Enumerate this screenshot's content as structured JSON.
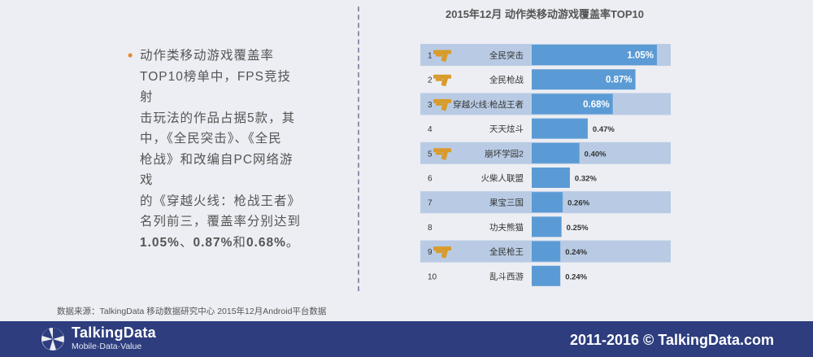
{
  "summary": {
    "line1": "动作类移动游戏覆盖率",
    "line2": "TOP10榜单中，FPS竞技射",
    "line3": "击玩法的作品占据5款，其",
    "line4": "中，《全民突击》、《全民",
    "line5": "枪战》和改编自PC网络游戏",
    "line6": "的《穿越火线：枪战王者》",
    "line7": "名列前三，覆盖率分别达到",
    "line8_a": "1.05%",
    "line8_b": "、",
    "line8_c": "0.87%",
    "line8_d": "和",
    "line8_e": "0.68%",
    "line8_f": "。"
  },
  "source": "数据来源：TalkingData   移动数据研究中心   2015年12月Android平台数据",
  "footer": {
    "brand": "TalkingData",
    "tagline": "Mobile·Data·Value",
    "copyright": "2011-2016 © TalkingData.com"
  },
  "chart_data": {
    "type": "bar",
    "orientation": "horizontal",
    "title": "2015年12月 动作类移动游戏覆盖率TOP10",
    "ranks": [
      "1",
      "2",
      "3",
      "4",
      "5",
      "6",
      "7",
      "8",
      "9",
      "10"
    ],
    "categories": [
      "全民突击",
      "全民枪战",
      "穿越火线:枪战王者",
      "天天炫斗",
      "崩坏学园2",
      "火柴人联盟",
      "果宝三国",
      "功夫熊猫",
      "全民枪王",
      "乱斗西游"
    ],
    "values": [
      1.05,
      0.87,
      0.68,
      0.47,
      0.4,
      0.32,
      0.26,
      0.25,
      0.24,
      0.24
    ],
    "value_labels": [
      "1.05%",
      "0.87%",
      "0.68%",
      "0.47%",
      "0.40%",
      "0.32%",
      "0.26%",
      "0.25%",
      "0.24%",
      "0.24%"
    ],
    "fps_icon": [
      true,
      true,
      true,
      false,
      true,
      false,
      false,
      false,
      true,
      false
    ],
    "colors": {
      "bar": "#5b9bd5",
      "band": "#b9cbe4",
      "icon": "#d99b2b"
    }
  }
}
